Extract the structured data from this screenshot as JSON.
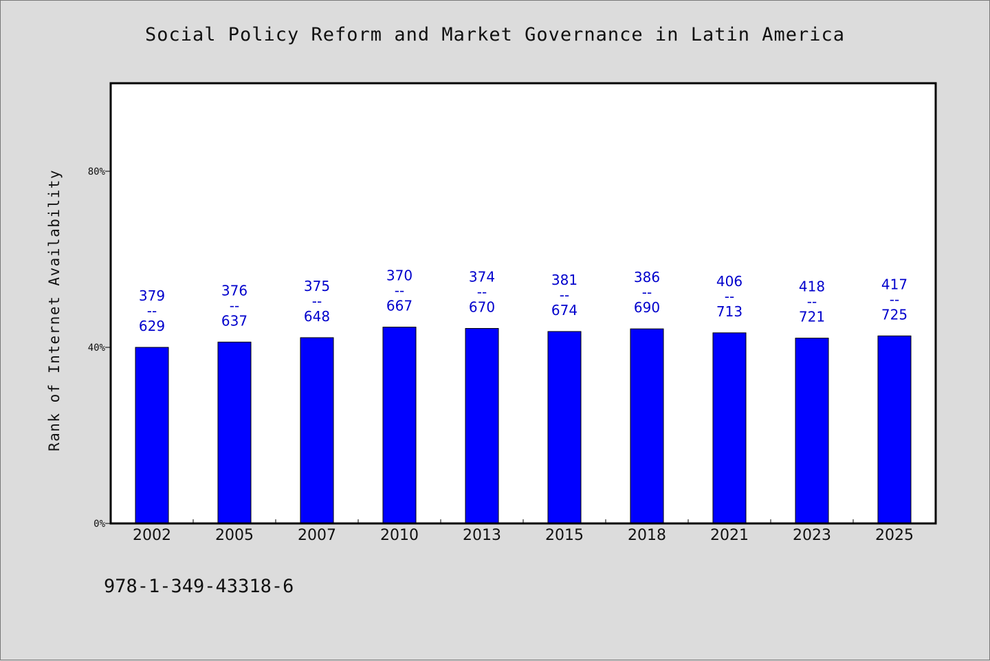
{
  "chart_data": {
    "type": "bar",
    "title": "Social Policy Reform and Market Governance in Latin America",
    "ylabel": "Rank of Internet Availability",
    "xlabel": "",
    "categories": [
      "2002",
      "2005",
      "2007",
      "2010",
      "2013",
      "2015",
      "2018",
      "2021",
      "2023",
      "2025"
    ],
    "values": [
      40.0,
      41.2,
      42.2,
      44.6,
      44.3,
      43.6,
      44.2,
      43.3,
      42.1,
      42.6
    ],
    "value_unit": "%",
    "data_labels": [
      {
        "top": "379",
        "mid": "--",
        "bottom": "629"
      },
      {
        "top": "376",
        "mid": "--",
        "bottom": "637"
      },
      {
        "top": "375",
        "mid": "--",
        "bottom": "648"
      },
      {
        "top": "370",
        "mid": "--",
        "bottom": "667"
      },
      {
        "top": "374",
        "mid": "--",
        "bottom": "670"
      },
      {
        "top": "381",
        "mid": "--",
        "bottom": "674"
      },
      {
        "top": "386",
        "mid": "--",
        "bottom": "690"
      },
      {
        "top": "406",
        "mid": "--",
        "bottom": "713"
      },
      {
        "top": "418",
        "mid": "--",
        "bottom": "721"
      },
      {
        "top": "417",
        "mid": "--",
        "bottom": "725"
      }
    ],
    "y_ticks": [
      {
        "value": 0,
        "label": "0%"
      },
      {
        "value": 40,
        "label": "40%"
      },
      {
        "value": 80,
        "label": "80%"
      }
    ],
    "ylim": [
      0,
      100
    ],
    "grid": false,
    "legend": "none",
    "colors": {
      "bar": "#0000ff",
      "label": "#0000cc",
      "background": "#dcdcdc",
      "plot_bg": "#ffffff"
    }
  },
  "footer": {
    "isbn": "978-1-349-43318-6"
  }
}
